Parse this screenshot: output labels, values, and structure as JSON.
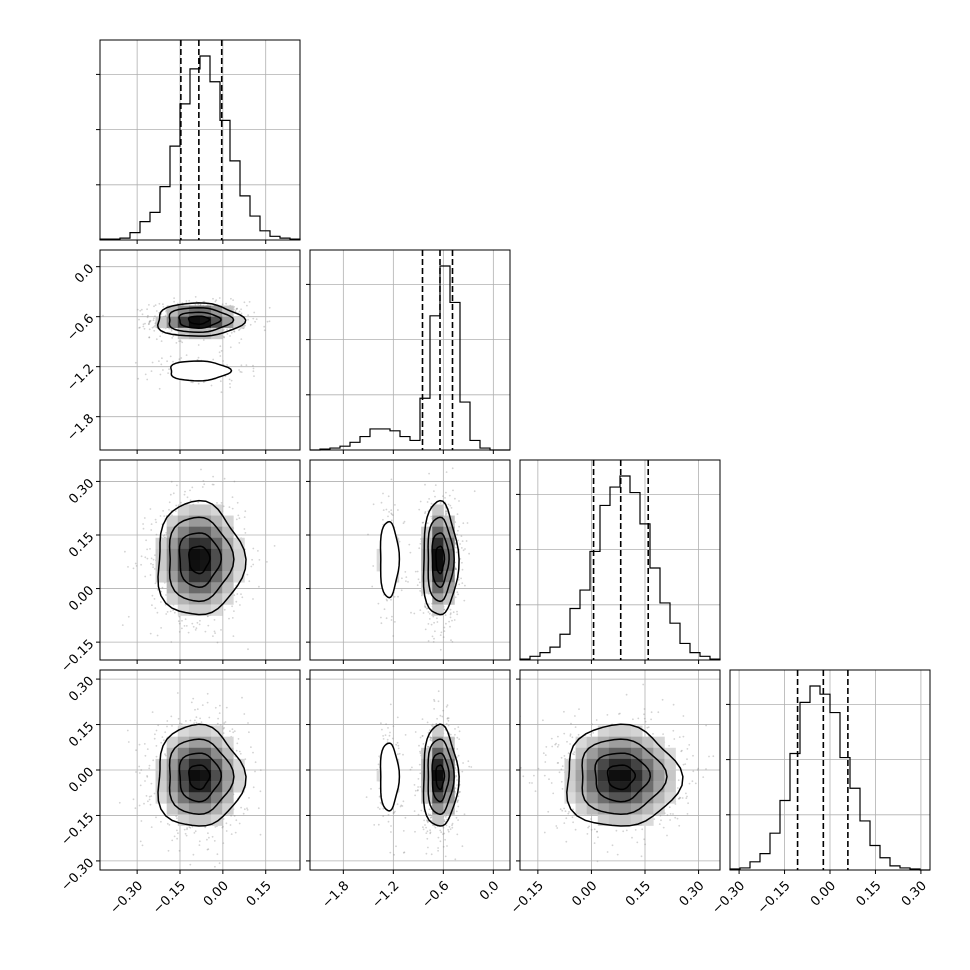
{
  "chart_data": {
    "type": "corner",
    "grid": true,
    "axes": {
      "x": {
        "ticks": [
          {
            "values": [
              -0.3,
              -0.15,
              0.0,
              0.15
            ],
            "labels": [
              "−0.30",
              "−0.15",
              "0.00",
              "0.15"
            ]
          },
          {
            "values": [
              -1.8,
              -1.2,
              -0.6,
              0.0
            ],
            "labels": [
              "−1.8",
              "−1.2",
              "−0.6",
              "0.0"
            ]
          },
          {
            "values": [
              -0.15,
              0.0,
              0.15,
              0.3
            ],
            "labels": [
              "−0.15",
              "0.00",
              "0.15",
              "0.30"
            ]
          },
          {
            "values": [
              -0.3,
              -0.15,
              0.0,
              0.15,
              0.3
            ],
            "labels": [
              "−0.30",
              "−0.15",
              "0.00",
              "0.15",
              "0.30"
            ]
          }
        ]
      },
      "y": {
        "ticks": [
          null,
          {
            "values": [
              0.0,
              -0.6,
              -1.2,
              -1.8
            ],
            "labels": [
              "0.0",
              "−0.6",
              "−1.2",
              "−1.8"
            ]
          },
          {
            "values": [
              0.3,
              0.15,
              0.0,
              -0.15
            ],
            "labels": [
              "0.30",
              "0.15",
              "0.00",
              "−0.15"
            ]
          },
          {
            "values": [
              0.3,
              0.15,
              0.0,
              -0.15,
              -0.3
            ],
            "labels": [
              "0.30",
              "0.15",
              "0.00",
              "−0.15",
              "−0.30"
            ]
          }
        ]
      }
    },
    "ranges": [
      [
        -0.43,
        0.27
      ],
      [
        -2.2,
        0.2
      ],
      [
        -0.2,
        0.36
      ],
      [
        -0.33,
        0.33
      ]
    ],
    "parameters": [
      {
        "quantiles": [
          -0.147,
          -0.084,
          -0.004
        ],
        "histogram": {
          "edges": [
            -0.43,
            -0.395,
            -0.36,
            -0.325,
            -0.29,
            -0.255,
            -0.22,
            -0.185,
            -0.15,
            -0.115,
            -0.08,
            -0.045,
            -0.01,
            0.025,
            0.06,
            0.095,
            0.13,
            0.165,
            0.2,
            0.235,
            0.27
          ],
          "heights": [
            0.005,
            0.005,
            0.01,
            0.04,
            0.1,
            0.15,
            0.29,
            0.51,
            0.74,
            0.93,
            1.0,
            0.86,
            0.65,
            0.43,
            0.24,
            0.13,
            0.05,
            0.02,
            0.01,
            0.005
          ]
        }
      },
      {
        "quantiles": [
          -0.85,
          -0.64,
          -0.49
        ],
        "histogram": {
          "edges": [
            -2.2,
            -2.08,
            -1.96,
            -1.84,
            -1.72,
            -1.6,
            -1.48,
            -1.36,
            -1.24,
            -1.12,
            -1.0,
            -0.88,
            -0.76,
            -0.64,
            -0.52,
            -0.4,
            -0.28,
            -0.16,
            -0.04,
            0.08,
            0.2
          ],
          "heights": [
            0.0,
            0.005,
            0.01,
            0.02,
            0.04,
            0.07,
            0.11,
            0.11,
            0.1,
            0.07,
            0.05,
            0.27,
            0.7,
            0.96,
            0.77,
            0.25,
            0.05,
            0.01,
            0.0,
            0.0
          ]
        }
      },
      {
        "quantiles": [
          0.006,
          0.082,
          0.159
        ],
        "histogram": {
          "edges": [
            -0.2,
            -0.172,
            -0.144,
            -0.116,
            -0.088,
            -0.06,
            -0.032,
            -0.004,
            0.024,
            0.052,
            0.08,
            0.108,
            0.136,
            0.164,
            0.192,
            0.22,
            0.248,
            0.276,
            0.304,
            0.332,
            0.36
          ],
          "heights": [
            0.005,
            0.02,
            0.04,
            0.07,
            0.14,
            0.28,
            0.38,
            0.59,
            0.84,
            0.94,
            1.0,
            0.91,
            0.74,
            0.5,
            0.31,
            0.2,
            0.09,
            0.04,
            0.02,
            0.005
          ]
        }
      },
      {
        "quantiles": [
          -0.107,
          -0.022,
          0.059
        ],
        "histogram": {
          "edges": [
            -0.33,
            -0.297,
            -0.264,
            -0.231,
            -0.198,
            -0.165,
            -0.132,
            -0.099,
            -0.066,
            -0.033,
            0.0,
            0.033,
            0.066,
            0.099,
            0.132,
            0.165,
            0.198,
            0.231,
            0.264,
            0.297,
            0.33
          ],
          "heights": [
            0.005,
            0.01,
            0.04,
            0.08,
            0.18,
            0.34,
            0.57,
            0.82,
            0.9,
            0.86,
            0.77,
            0.55,
            0.4,
            0.24,
            0.12,
            0.06,
            0.02,
            0.01,
            0.005,
            0.0
          ]
        }
      }
    ],
    "pairs": [
      {
        "row": 1,
        "col": 0,
        "modes": [
          {
            "mx": -0.085,
            "my": -0.64,
            "sx": 0.072,
            "sy": 0.095,
            "w": 0.86
          },
          {
            "mx": -0.085,
            "my": -1.25,
            "sx": 0.075,
            "sy": 0.085,
            "w": 0.14
          }
        ]
      },
      {
        "row": 2,
        "col": 0,
        "modes": [
          {
            "mx": -0.084,
            "my": 0.082,
            "sx": 0.072,
            "sy": 0.076,
            "w": 1.0
          }
        ]
      },
      {
        "row": 2,
        "col": 1,
        "modes": [
          {
            "mx": -0.64,
            "my": 0.082,
            "sx": 0.1,
            "sy": 0.076,
            "w": 0.86
          },
          {
            "mx": -1.25,
            "my": 0.082,
            "sx": 0.08,
            "sy": 0.076,
            "w": 0.14
          }
        ]
      },
      {
        "row": 3,
        "col": 0,
        "modes": [
          {
            "mx": -0.084,
            "my": -0.022,
            "sx": 0.072,
            "sy": 0.08,
            "w": 1.0
          }
        ]
      },
      {
        "row": 3,
        "col": 1,
        "modes": [
          {
            "mx": -0.64,
            "my": -0.022,
            "sx": 0.1,
            "sy": 0.08,
            "w": 0.86
          },
          {
            "mx": -1.25,
            "my": -0.022,
            "sx": 0.08,
            "sy": 0.08,
            "w": 0.14
          }
        ]
      },
      {
        "row": 3,
        "col": 2,
        "modes": [
          {
            "mx": 0.082,
            "my": -0.022,
            "sx": 0.076,
            "sy": 0.08,
            "w": 1.0
          }
        ]
      }
    ],
    "colors": {
      "line": "#000000",
      "grid": "#b0b0b0",
      "scatter": "#808080",
      "density_max": "#000000"
    }
  }
}
